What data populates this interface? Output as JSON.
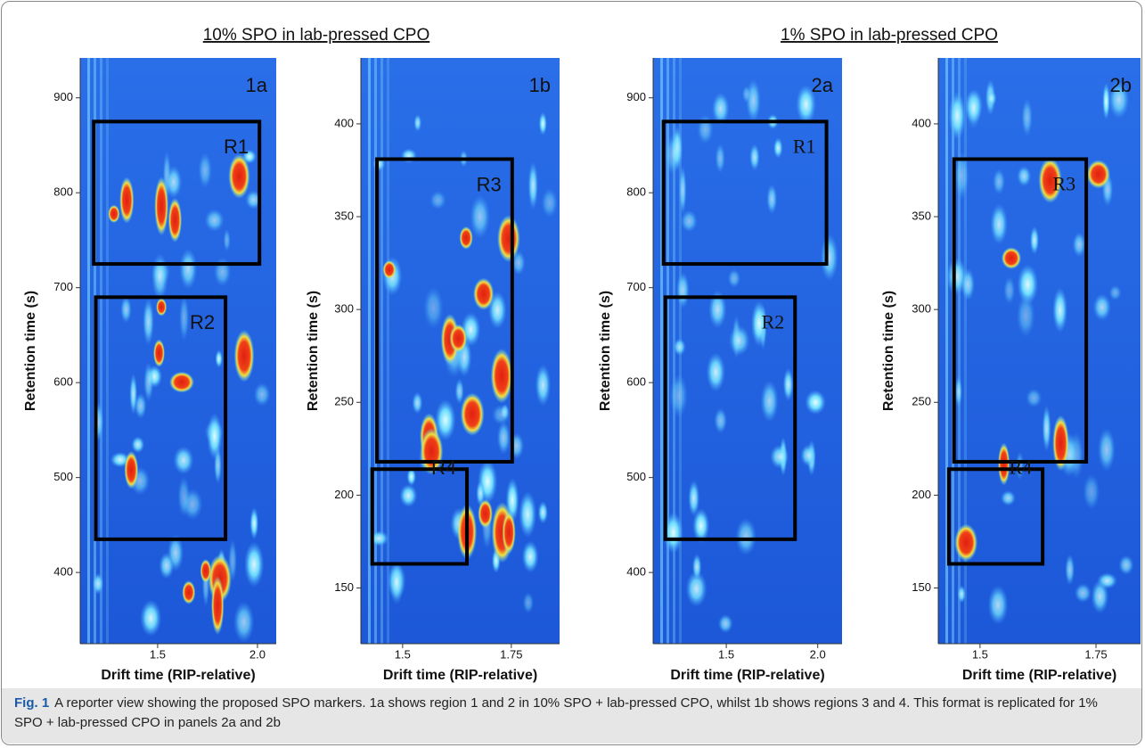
{
  "figure": {
    "groups": [
      "10% SPO in lab-pressed CPO",
      "1% SPO in lab-pressed CPO"
    ],
    "panels": [
      {
        "label": "1a",
        "xlabel": "Drift time (RIP-relative)",
        "ylabel": "Retention time (s)",
        "xlim": [
          1.112,
          2.094
        ],
        "ylim": [
          325,
          942
        ],
        "xticks": [
          1.5,
          {
            "value": 2,
            "label": "2.0"
          }
        ],
        "yticks": [
          400,
          500,
          600,
          700,
          800,
          900
        ],
        "regions": [
          {
            "label": "R1",
            "xlim": [
              1.18,
              2.01
            ],
            "ylim": [
              725,
              875
            ]
          },
          {
            "label": "R2",
            "xlim": [
              1.19,
              1.84
            ],
            "ylim": [
              435,
              690
            ]
          }
        ]
      },
      {
        "label": "1b",
        "xlabel": "Drift time (RIP-relative)",
        "ylabel": "Retention time (s)",
        "xlim": [
          1.404,
          1.861
        ],
        "ylim": [
          120,
          435.5
        ],
        "xticks": [
          1.5,
          1.75
        ],
        "yticks": [
          150,
          200,
          250,
          300,
          350,
          400
        ],
        "regions": [
          {
            "label": "R3",
            "xlim": [
              1.441,
              1.752
            ],
            "ylim": [
              218,
              381
            ]
          },
          {
            "label": "R4",
            "xlim": [
              1.43,
              1.648
            ],
            "ylim": [
              163,
              214
            ]
          }
        ]
      },
      {
        "label": "2a",
        "xlabel": "Drift time (RIP-relative)",
        "ylabel": "Retention time (s)",
        "xlim": [
          1.1,
          2.133
        ],
        "ylim": [
          325,
          942
        ],
        "xticks": [
          1.5,
          {
            "value": 2,
            "label": "2.0"
          }
        ],
        "yticks": [
          400,
          500,
          600,
          700,
          800,
          900
        ],
        "regions": [
          {
            "label": "R1",
            "xlim": [
              1.157,
              2.048
            ],
            "ylim": [
              725,
              875
            ]
          },
          {
            "label": "R2",
            "xlim": [
              1.167,
              1.876
            ],
            "ylim": [
              435,
              690
            ]
          }
        ]
      },
      {
        "label": "2b",
        "xlabel": "Drift time (RIP-relative)",
        "ylabel": "Retention time (s)",
        "xlim": [
          1.41,
          1.846
        ],
        "ylim": [
          120,
          435.5
        ],
        "xticks": [
          1.5,
          1.75
        ],
        "yticks": [
          150,
          200,
          250,
          300,
          350,
          400
        ],
        "regions": [
          {
            "label": "R3",
            "xlim": [
              1.444,
              1.729
            ],
            "ylim": [
              218,
              381
            ]
          },
          {
            "label": "R4",
            "xlim": [
              1.433,
              1.635
            ],
            "ylim": [
              163,
              214
            ]
          }
        ]
      }
    ],
    "caption": {
      "label": "Fig. 1",
      "text": "A reporter view showing the proposed SPO markers. 1a shows region 1 and 2 in 10% SPO + lab-pressed CPO, whilst 1b shows regions 3 and 4. This format is replicated for 1% SPO + lab-pressed CPO in panels 2a and 2b"
    }
  }
}
